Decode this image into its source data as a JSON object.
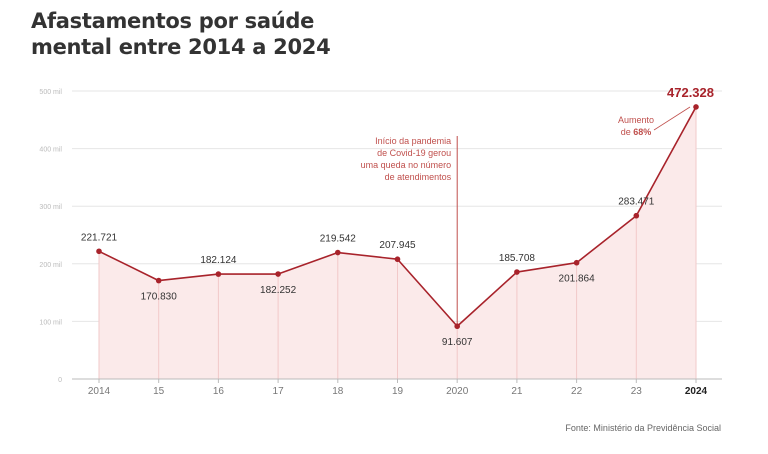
{
  "title": {
    "line1": "Afastamentos por saúde",
    "line2": "mental entre 2014 a 2024"
  },
  "colors": {
    "line": "#a8232b",
    "area": "#fbeaea",
    "grid": "#e6e6e6",
    "text": "#333333",
    "axis": "#999999",
    "annotation": "#c0504d"
  },
  "chart_data": {
    "type": "area",
    "title": "Afastamentos por saúde mental entre 2014 a 2024",
    "xlabel": "",
    "ylabel": "",
    "categories": [
      "2014",
      "15",
      "16",
      "17",
      "18",
      "19",
      "2020",
      "21",
      "22",
      "23",
      "2024"
    ],
    "values": [
      221721,
      170830,
      182124,
      182252,
      219542,
      207945,
      91607,
      185708,
      201864,
      283471,
      472328
    ],
    "value_labels": [
      "221.721",
      "170.830",
      "182.124",
      "182.252",
      "219.542",
      "207.945",
      "91.607",
      "185.708",
      "201.864",
      "283.471",
      "472.328"
    ],
    "label_positions": [
      "above",
      "below",
      "above",
      "below",
      "above",
      "above",
      "below",
      "above",
      "below",
      "above",
      "above"
    ],
    "ylim": [
      0,
      500000
    ],
    "yticks": [
      0,
      100000,
      200000,
      300000,
      400000,
      500000
    ],
    "ytick_labels": [
      "0",
      "100 mil",
      "200 mil",
      "300 mil",
      "400 mil",
      "500 mil"
    ],
    "grid": true,
    "annotations": [
      {
        "category": "2020",
        "lines": [
          "Início da pandemia",
          "de Covid-19 gerou",
          "uma queda no número",
          "de atendimentos"
        ]
      },
      {
        "category": "2024",
        "lines": [
          "Aumento",
          "de "
        ],
        "highlight": "68%"
      }
    ]
  },
  "source": "Fonte: Ministério da Previdência Social"
}
